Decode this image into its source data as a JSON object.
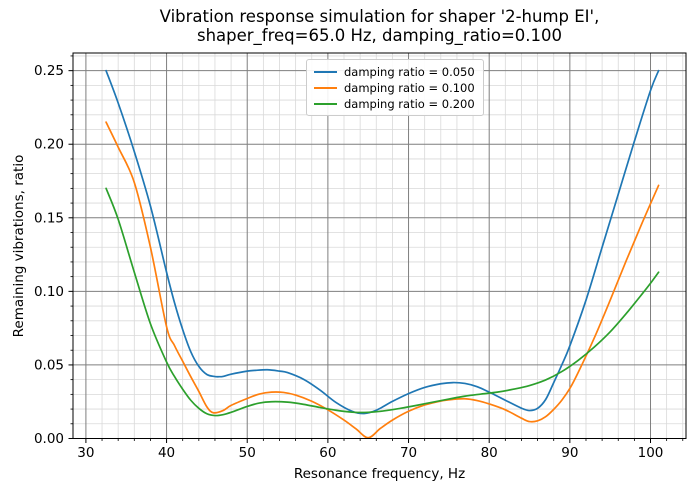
{
  "chart_data": {
    "type": "line",
    "title": "Vibration response simulation for shaper '2-hump EI',\nshaper_freq=65.0 Hz, damping_ratio=0.100",
    "xlabel": "Resonance frequency, Hz",
    "ylabel": "Remaining vibrations, ratio",
    "xlim": [
      28.4,
      104.4
    ],
    "ylim": [
      0.0,
      0.262
    ],
    "x_ticks": [
      30,
      40,
      50,
      60,
      70,
      80,
      90,
      100
    ],
    "x_tick_labels": [
      "30",
      "40",
      "50",
      "60",
      "70",
      "80",
      "90",
      "100"
    ],
    "y_ticks": [
      0.0,
      0.05,
      0.1,
      0.15,
      0.2,
      0.25
    ],
    "y_tick_labels": [
      "0.00",
      "0.05",
      "0.10",
      "0.15",
      "0.20",
      "0.25"
    ],
    "x_minor_step": 2,
    "y_minor_step": 0.01,
    "grid": "both",
    "legend_position": "upper center",
    "colors": {
      "major_grid": "#7f7f7f",
      "minor_grid": "#d9d9d9",
      "spine": "#000000",
      "background": "#ffffff"
    },
    "series": [
      {
        "name": "damping ratio = 0.050",
        "color": "#1f77b4",
        "x": [
          32.5,
          34,
          36,
          38,
          40,
          41,
          42,
          43,
          44,
          45,
          46,
          46.5,
          47,
          48,
          50,
          51,
          52.5,
          54,
          55,
          57,
          59,
          61,
          63,
          64.5,
          66,
          68,
          70,
          72,
          74,
          75.5,
          77,
          78.5,
          80,
          82,
          84,
          85,
          86,
          87,
          88,
          89,
          90,
          92,
          94,
          96,
          98,
          100,
          101
        ],
        "y": [
          0.25,
          0.228,
          0.195,
          0.158,
          0.113,
          0.092,
          0.074,
          0.059,
          0.049,
          0.0435,
          0.0421,
          0.042,
          0.0422,
          0.0437,
          0.0458,
          0.0463,
          0.0467,
          0.0458,
          0.0448,
          0.0402,
          0.033,
          0.0245,
          0.0185,
          0.017,
          0.0192,
          0.0252,
          0.0305,
          0.0347,
          0.0372,
          0.038,
          0.0374,
          0.0352,
          0.0315,
          0.026,
          0.0206,
          0.019,
          0.0205,
          0.0265,
          0.038,
          0.05,
          0.063,
          0.094,
          0.13,
          0.166,
          0.202,
          0.2365,
          0.25
        ]
      },
      {
        "name": "damping ratio = 0.100",
        "color": "#ff7f0e",
        "x": [
          32.5,
          34,
          36,
          38,
          40,
          41,
          42,
          43,
          44,
          45,
          45.8,
          47,
          48,
          50,
          51.5,
          53,
          54.5,
          56,
          58,
          60,
          62,
          63.5,
          65,
          66.5,
          68,
          70,
          72,
          74,
          75.5,
          77,
          78.5,
          80,
          82,
          84,
          85,
          86,
          87,
          88,
          89,
          90,
          91,
          93,
          95,
          97,
          99,
          101
        ],
        "y": [
          0.215,
          0.198,
          0.174,
          0.13,
          0.076,
          0.063,
          0.0525,
          0.042,
          0.032,
          0.0215,
          0.0175,
          0.019,
          0.0225,
          0.0272,
          0.0302,
          0.0315,
          0.0313,
          0.0295,
          0.0253,
          0.0195,
          0.0125,
          0.0065,
          0.0005,
          0.0068,
          0.0125,
          0.0185,
          0.0228,
          0.0255,
          0.0266,
          0.027,
          0.0258,
          0.0235,
          0.0195,
          0.0138,
          0.0115,
          0.012,
          0.0148,
          0.0198,
          0.026,
          0.034,
          0.0445,
          0.068,
          0.094,
          0.121,
          0.147,
          0.172
        ]
      },
      {
        "name": "damping ratio = 0.200",
        "color": "#2ca02c",
        "x": [
          32.5,
          34,
          36,
          38,
          40,
          41,
          42,
          43,
          44,
          45,
          46,
          47,
          48,
          50,
          51.5,
          53,
          55,
          57,
          59,
          61,
          63,
          65,
          67,
          69,
          71,
          73,
          75,
          77,
          79,
          81,
          83,
          85,
          87,
          89,
          91,
          93,
          95,
          97,
          99,
          100,
          101
        ],
        "y": [
          0.17,
          0.149,
          0.113,
          0.078,
          0.052,
          0.042,
          0.0335,
          0.026,
          0.0205,
          0.0168,
          0.0156,
          0.0162,
          0.0178,
          0.0218,
          0.0241,
          0.025,
          0.0247,
          0.0232,
          0.0211,
          0.0192,
          0.0179,
          0.0178,
          0.0188,
          0.0205,
          0.0225,
          0.0247,
          0.0268,
          0.0288,
          0.0302,
          0.0315,
          0.0335,
          0.036,
          0.0398,
          0.0455,
          0.053,
          0.062,
          0.0725,
          0.085,
          0.0985,
          0.1055,
          0.113
        ]
      }
    ]
  }
}
